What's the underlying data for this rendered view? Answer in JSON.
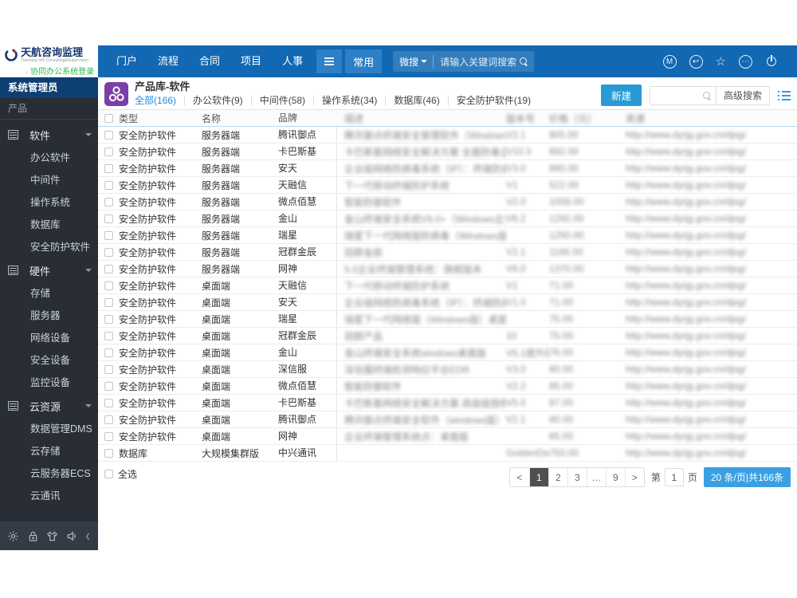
{
  "brand": {
    "logo_title": "天航咨询监理",
    "logo_subtitle": "Tianhang Info Consulting&Supervision",
    "login_link": "· 协同办公系统登录"
  },
  "topnav": {
    "items": [
      "门户",
      "流程",
      "合同",
      "项目",
      "人事"
    ],
    "active_item": "常用",
    "search_scope": "微搜",
    "search_placeholder": "请输入关键词搜索",
    "right_icons": [
      "m-badge-icon",
      "reply-icon",
      "favorite-star-icon",
      "more-ellipsis-icon",
      "power-icon"
    ]
  },
  "sidebar": {
    "role": "系统管理员",
    "section": "产品",
    "groups": [
      {
        "label": "软件",
        "children": [
          "办公软件",
          "中间件",
          "操作系统",
          "数据库",
          "安全防护软件"
        ]
      },
      {
        "label": "硬件",
        "children": [
          "存储",
          "服务器",
          "网络设备",
          "安全设备",
          "监控设备"
        ]
      },
      {
        "label": "云资源",
        "children": [
          "数据管理DMS",
          "云存储",
          "云服务器ECS",
          "云通讯"
        ]
      }
    ],
    "bottom_icons": [
      "settings-gear-icon",
      "lock-icon",
      "theme-shirt-icon",
      "sound-speaker-icon"
    ]
  },
  "page": {
    "title": "产品库-软件",
    "tabs": [
      {
        "label": "全部(166)",
        "active": true
      },
      {
        "label": "办公软件(9)",
        "active": false
      },
      {
        "label": "中间件(58)",
        "active": false
      },
      {
        "label": "操作系统(34)",
        "active": false
      },
      {
        "label": "数据库(46)",
        "active": false
      },
      {
        "label": "安全防护软件(19)",
        "active": false
      }
    ],
    "new_button": "新建",
    "advanced_search": "高级搜索"
  },
  "table": {
    "headers": {
      "type": "类型",
      "name": "名称",
      "brand": "品牌",
      "desc": "描述",
      "version": "版本号",
      "price": "价格（元）",
      "source": "来源"
    },
    "blurred_columns": [
      "desc",
      "version",
      "price",
      "source"
    ],
    "rows": [
      {
        "type": "安全防护软件",
        "name": "服务器端",
        "brand": "腾讯御点",
        "desc": "腾讯御点终端安全管理软件（Windows版）",
        "version": "V2.1",
        "price": "805.00",
        "source": "http://www.dyrjg.gov.cn/djsg/"
      },
      {
        "type": "安全防护软件",
        "name": "服务器端",
        "brand": "卡巴斯基",
        "desc": "卡巴斯基网络安全解决方案 全面防毒企业增强版",
        "version": "V10.3",
        "price": "892.00",
        "source": "http://www.dyrjg.gov.cn/djsg/"
      },
      {
        "type": "安全防护软件",
        "name": "服务器端",
        "brand": "安天",
        "desc": "企业级网络防病毒系统（IP）：终端防病毒",
        "version": "V3.0",
        "price": "880.00",
        "source": "http://www.dyrjg.gov.cn/djsg/"
      },
      {
        "type": "安全防护软件",
        "name": "服务器端",
        "brand": "天融信",
        "desc": "下一代移动终端防护系统",
        "version": "V1",
        "price": "522.00",
        "source": "http://www.dyrjg.gov.cn/djsg/"
      },
      {
        "type": "安全防护软件",
        "name": "服务器端",
        "brand": "微点佰慧",
        "desc": "智能防御软件",
        "version": "V2.0",
        "price": "1058.00",
        "source": "http://www.dyrjg.gov.cn/djsg/"
      },
      {
        "type": "安全防护软件",
        "name": "服务器端",
        "brand": "金山",
        "desc": "金山终端安全系统V9.0+（Windows企业版）",
        "version": "V6.2",
        "price": "1292.00",
        "source": "http://www.dyrjg.gov.cn/djsg/"
      },
      {
        "type": "安全防护软件",
        "name": "服务器端",
        "brand": "瑞星",
        "desc": "瑞星下一代网络版防病毒（Windows版）增强版",
        "version": "",
        "price": "1250.00",
        "source": "http://www.dyrjg.gov.cn/djsg/"
      },
      {
        "type": "安全防护软件",
        "name": "服务器端",
        "brand": "冠群金辰",
        "desc": "冠群金辰",
        "version": "V2.1",
        "price": "1165.00",
        "source": "http://www.dyrjg.gov.cn/djsg/"
      },
      {
        "type": "安全防护软件",
        "name": "服务器端",
        "brand": "网神",
        "desc": "5.0企业终端管理系统：旗舰版本",
        "version": "V6.0",
        "price": "1370.00",
        "source": "http://www.dyrjg.gov.cn/djsg/"
      },
      {
        "type": "安全防护软件",
        "name": "桌面端",
        "brand": "天融信",
        "desc": "下一代移动终端防护系统",
        "version": "V1",
        "price": "71.00",
        "source": "http://www.dyrjg.gov.cn/djsg/"
      },
      {
        "type": "安全防护软件",
        "name": "桌面端",
        "brand": "安天",
        "desc": "企业级网络防病毒系统（IP）：终端防病毒",
        "version": "V1.0",
        "price": "71.00",
        "source": "http://www.dyrjg.gov.cn/djsg/"
      },
      {
        "type": "安全防护软件",
        "name": "桌面端",
        "brand": "瑞星",
        "desc": "瑞星下一代网络版（Windows版）桌面版",
        "version": "",
        "price": "75.00",
        "source": "http://www.dyrjg.gov.cn/djsg/"
      },
      {
        "type": "安全防护软件",
        "name": "桌面端",
        "brand": "冠群金辰",
        "desc": "冠群产品",
        "version": "10",
        "price": "75.00",
        "source": "http://www.dyrjg.gov.cn/djsg/"
      },
      {
        "type": "安全防护软件",
        "name": "桌面端",
        "brand": "金山",
        "desc": "金山终端安全系统windows桌面版",
        "version": "V5.1提升版",
        "price": "76.00",
        "source": "http://www.dyrjg.gov.cn/djsg/"
      },
      {
        "type": "安全防护软件",
        "name": "桌面端",
        "brand": "深信服",
        "desc": "深信服终端检测响应平台EDR",
        "version": "V3.0",
        "price": "80.00",
        "source": "http://www.dyrjg.gov.cn/djsg/"
      },
      {
        "type": "安全防护软件",
        "name": "桌面端",
        "brand": "微点佰慧",
        "desc": "智能防御软件",
        "version": "V2.2",
        "price": "85.00",
        "source": "http://www.dyrjg.gov.cn/djsg/"
      },
      {
        "type": "安全防护软件",
        "name": "桌面端",
        "brand": "卡巴斯基",
        "desc": "卡巴斯基网络安全解决方案 高级版授权（一年） +安全",
        "version": "V5.0",
        "price": "87.00",
        "source": "http://www.dyrjg.gov.cn/djsg/"
      },
      {
        "type": "安全防护软件",
        "name": "桌面端",
        "brand": "腾讯御点",
        "desc": "腾讯御点终端安全软件（windows版）V2.1",
        "version": "V2.1",
        "price": "80.00",
        "source": "http://www.dyrjg.gov.cn/djsg/"
      },
      {
        "type": "安全防护软件",
        "name": "桌面端",
        "brand": "网神",
        "desc": "企业终端管理系统点：桌面版",
        "version": "",
        "price": "85.00",
        "source": "http://www.dyrjg.gov.cn/djsg/"
      },
      {
        "type": "数据库",
        "name": "大规模集群版",
        "brand": "中兴通讯",
        "desc": "",
        "version": "GoldenData s...",
        "price": "750.00",
        "source": "http://www.dyrjg.gov.cn/djsg/"
      }
    ]
  },
  "footer": {
    "select_all": "全选",
    "pagination": {
      "cells": [
        "<",
        "1",
        "2",
        "3",
        "…",
        "9",
        ">"
      ],
      "active": "1",
      "jump_prefix": "第",
      "jump_value": "1",
      "jump_suffix": "页",
      "size_info": "20 条/页|共166条"
    }
  }
}
